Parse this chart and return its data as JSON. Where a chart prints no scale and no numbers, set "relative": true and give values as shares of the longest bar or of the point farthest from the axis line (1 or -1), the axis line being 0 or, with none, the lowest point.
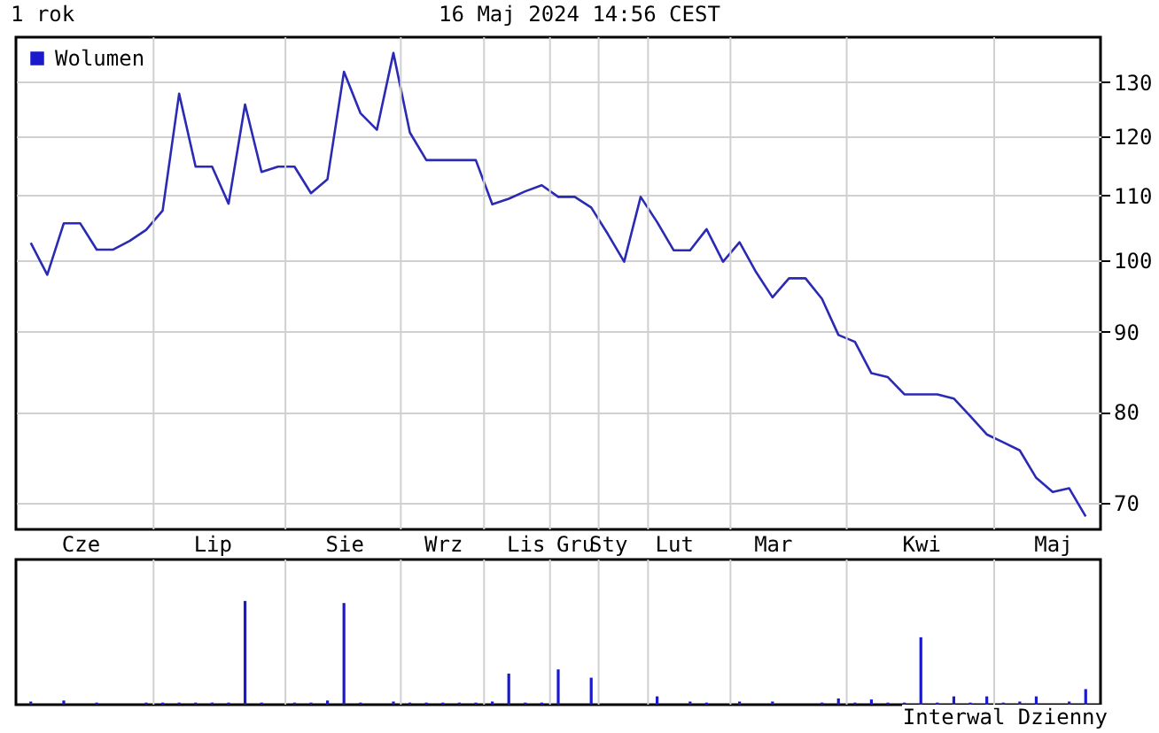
{
  "chart_data": [
    {
      "type": "line",
      "title": "1 rok",
      "annotations": [
        "16 Maj 2024 14:56 CEST"
      ],
      "categories": [
        null,
        null,
        null,
        "Cze",
        null,
        null,
        null,
        null,
        null,
        null,
        null,
        "Lip",
        null,
        null,
        null,
        null,
        null,
        null,
        null,
        "Sie",
        null,
        null,
        null,
        null,
        null,
        "Wrz",
        null,
        null,
        null,
        null,
        "Lis",
        null,
        null,
        "Gru",
        null,
        "Sty",
        null,
        null,
        null,
        "Lut",
        null,
        null,
        null,
        null,
        null,
        "Mar",
        null,
        null,
        null,
        null,
        null,
        null,
        null,
        null,
        "Kwi",
        null,
        null,
        null,
        null,
        null,
        null,
        null,
        "Maj",
        null,
        null
      ],
      "values": [
        102.6,
        97.9,
        105.6,
        105.6,
        101.6,
        101.6,
        102.9,
        104.6,
        107.6,
        127.8,
        114.8,
        114.8,
        108.7,
        125.8,
        113.9,
        114.8,
        114.8,
        110.4,
        112.7,
        132.0,
        124.2,
        121.2,
        135.7,
        120.7,
        115.9,
        115.9,
        115.9,
        115.9,
        108.6,
        109.5,
        110.7,
        111.7,
        109.8,
        109.8,
        108.1,
        104.0,
        99.8,
        109.8,
        105.8,
        101.5,
        101.5,
        104.7,
        99.8,
        102.7,
        98.3,
        94.7,
        97.4,
        97.4,
        94.5,
        89.6,
        88.7,
        84.7,
        84.2,
        82.1,
        82.1,
        82.1,
        81.6,
        79.5,
        77.4,
        76.5,
        75.6,
        72.6,
        71.1,
        71.5,
        68.6
      ],
      "color": "#2a2ab4",
      "log": "y",
      "ylim": [
        67.3,
        138.9
      ],
      "yticks": [
        70,
        80,
        90,
        100,
        110,
        120,
        130
      ],
      "grid": true
    },
    {
      "type": "bar",
      "relative": true,
      "legend": "top left",
      "annotations": [
        "Interwal Dzienny"
      ],
      "grid": "x",
      "categories": [
        null,
        null,
        null,
        null,
        null,
        null,
        null,
        null,
        null,
        null,
        null,
        null,
        null,
        null,
        null,
        null,
        null,
        null,
        null,
        null,
        null,
        null,
        null,
        null,
        null,
        null,
        null,
        null,
        null,
        null,
        null,
        null,
        null,
        null,
        null,
        null,
        null,
        null,
        null,
        null,
        null,
        null,
        null,
        null,
        null,
        null,
        null,
        null,
        null,
        null,
        null,
        null,
        null,
        null,
        null,
        null,
        null,
        null,
        null,
        null,
        null,
        null,
        null,
        null,
        null
      ],
      "series": [
        {
          "name": "Wolumen",
          "color": "#1a1acc",
          "values": [
            0.03,
            null,
            0.04,
            null,
            0.02,
            null,
            null,
            0.02,
            0.02,
            0.02,
            0.02,
            0.02,
            0.02,
            1.0,
            0.02,
            null,
            0.02,
            0.02,
            0.04,
            0.98,
            0.02,
            null,
            0.03,
            0.02,
            0.02,
            0.02,
            0.02,
            0.02,
            0.03,
            0.3,
            0.02,
            0.02,
            0.34,
            null,
            0.26,
            null,
            null,
            null,
            0.08,
            null,
            0.03,
            0.02,
            null,
            0.03,
            null,
            0.03,
            null,
            null,
            0.02,
            0.06,
            0.02,
            0.05,
            0.02,
            0.02,
            0.65,
            0.02,
            0.08,
            0.02,
            0.08,
            0.02,
            0.03,
            0.08,
            null,
            0.03,
            0.15
          ]
        }
      ]
    }
  ]
}
